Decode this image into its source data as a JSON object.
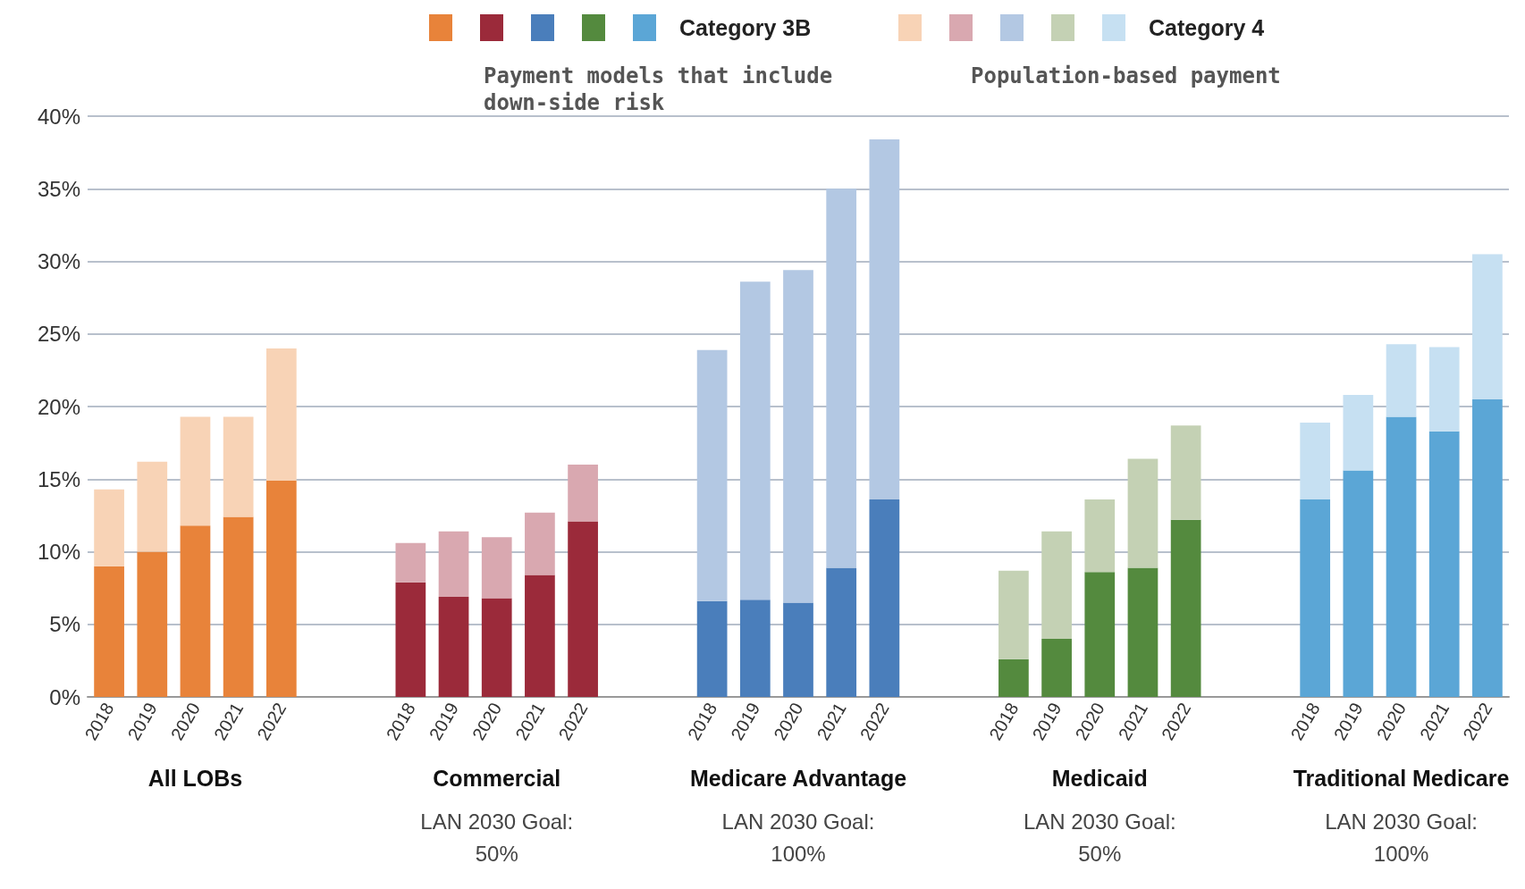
{
  "chart_data": {
    "type": "bar",
    "stacked": true,
    "categories": [
      "2018",
      "2019",
      "2020",
      "2021",
      "2022",
      null,
      null,
      "2018",
      "2019",
      "2020",
      "2021",
      "2022",
      null,
      null,
      "2018",
      "2019",
      "2020",
      "2021",
      "2022",
      null,
      null,
      "2018",
      "2019",
      "2020",
      "2021",
      "2022",
      null,
      null,
      "2018",
      "2019",
      "2020",
      "2021",
      "2022"
    ],
    "series": [
      {
        "name": "Category 3B",
        "colors": [
          "#e8833a",
          "#e8833a",
          "#e8833a",
          "#e8833a",
          "#e8833a",
          null,
          null,
          "#9b2a3a",
          "#9b2a3a",
          "#9b2a3a",
          "#9b2a3a",
          "#9b2a3a",
          null,
          null,
          "#4a7ebb",
          "#4a7ebb",
          "#4a7ebb",
          "#4a7ebb",
          "#4a7ebb",
          null,
          null,
          "#548a3e",
          "#548a3e",
          "#548a3e",
          "#548a3e",
          "#548a3e",
          null,
          null,
          "#5ba6d6",
          "#5ba6d6",
          "#5ba6d6",
          "#5ba6d6",
          "#5ba6d6"
        ],
        "values": [
          9.0,
          10.0,
          11.8,
          12.4,
          14.9,
          null,
          null,
          7.9,
          6.9,
          6.8,
          8.4,
          12.1,
          null,
          null,
          6.6,
          6.7,
          6.5,
          8.9,
          13.6,
          null,
          null,
          2.6,
          4.0,
          8.6,
          8.9,
          12.2,
          null,
          null,
          13.6,
          15.6,
          19.3,
          18.3,
          20.5
        ]
      },
      {
        "name": "Category 4",
        "colors": [
          "#f8d3b6",
          "#f8d3b6",
          "#f8d3b6",
          "#f8d3b6",
          "#f8d3b6",
          null,
          null,
          "#d9a8b0",
          "#d9a8b0",
          "#d9a8b0",
          "#d9a8b0",
          "#d9a8b0",
          null,
          null,
          "#b3c8e3",
          "#b3c8e3",
          "#b3c8e3",
          "#b3c8e3",
          "#b3c8e3",
          null,
          null,
          "#c4d1b4",
          "#c4d1b4",
          "#c4d1b4",
          "#c4d1b4",
          "#c4d1b4",
          null,
          null,
          "#c6e0f2",
          "#c6e0f2",
          "#c6e0f2",
          "#c6e0f2",
          "#c6e0f2"
        ],
        "values": [
          5.3,
          6.2,
          7.5,
          6.9,
          9.1,
          null,
          null,
          2.7,
          4.5,
          4.2,
          4.3,
          3.9,
          null,
          null,
          17.3,
          21.9,
          22.9,
          26.1,
          24.8,
          null,
          null,
          6.1,
          7.4,
          5.0,
          7.5,
          6.5,
          null,
          null,
          5.3,
          5.2,
          5.0,
          5.8,
          10.0
        ]
      }
    ],
    "ylim": [
      0,
      40
    ],
    "yticks": [
      {
        "value": 0,
        "label": "0%"
      },
      {
        "value": 5,
        "label": "5%"
      },
      {
        "value": 10,
        "label": "10%"
      },
      {
        "value": 15,
        "label": "15%"
      },
      {
        "value": 20,
        "label": "20%"
      },
      {
        "value": 25,
        "label": "25%"
      },
      {
        "value": 30,
        "label": "30%"
      },
      {
        "value": 35,
        "label": "35%"
      },
      {
        "value": 40,
        "label": "40%"
      }
    ],
    "grid": "y",
    "legend": "top",
    "annotations": [
      "Payment models that include\ndown-side risk",
      "Population-based payment",
      "All LOBs",
      "Commercial",
      "Medicare Advantage",
      "Medicaid",
      "Traditional Medicare",
      "LAN 2030 Goal:\n50%",
      "LAN 2030 Goal:\n100%",
      "LAN 2030 Goal:\n50%",
      "LAN 2030 Goal:\n100%"
    ]
  }
}
